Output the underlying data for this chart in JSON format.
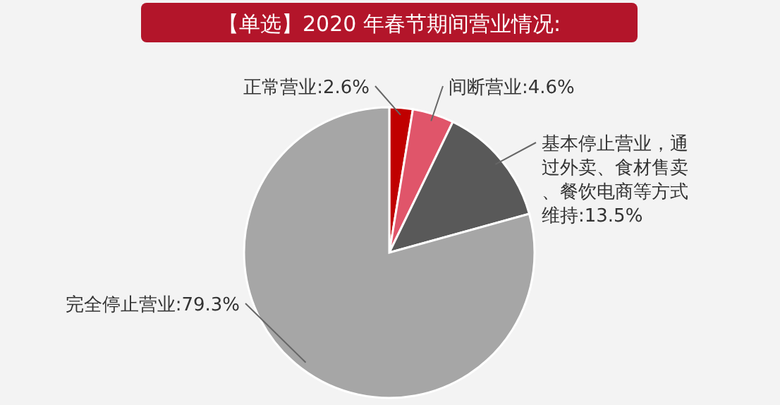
{
  "chart_data": {
    "type": "pie",
    "title": "【单选】2020 年春节期间营业情况:",
    "categories": [
      "正常营业",
      "间断营业",
      "基本停止营业，通过外卖、食材售卖、餐饮电商等方式维持",
      "完全停止营业"
    ],
    "values": [
      2.6,
      4.6,
      13.5,
      79.3
    ],
    "value_labels": [
      "2.6%",
      "4.6%",
      "13.5%",
      "79.3%"
    ],
    "colors": [
      "#c00000",
      "#e0556a",
      "#595959",
      "#a6a6a6"
    ],
    "legend": false
  }
}
